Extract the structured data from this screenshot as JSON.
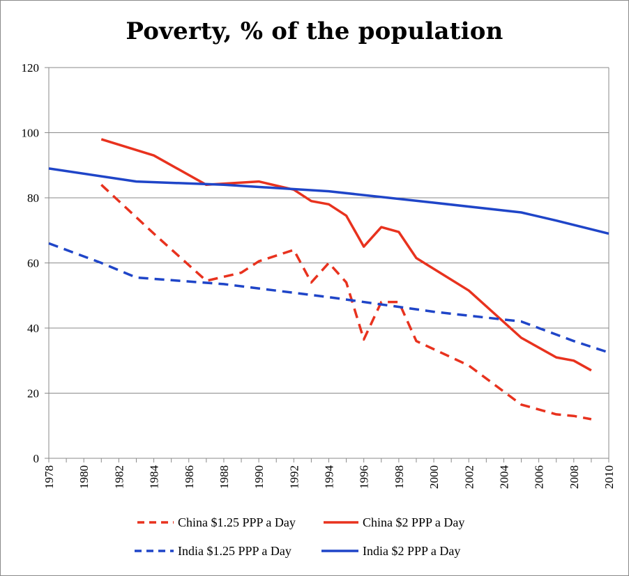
{
  "chart_data": {
    "type": "line",
    "title": "Poverty, % of the population",
    "xlabel": "",
    "ylabel": "",
    "xlim": [
      1978,
      2010
    ],
    "ylim": [
      0,
      120
    ],
    "y_ticks": [
      0,
      20,
      40,
      60,
      80,
      100,
      120
    ],
    "x_ticks": [
      1978,
      1980,
      1982,
      1984,
      1986,
      1988,
      1990,
      1992,
      1994,
      1996,
      1998,
      2000,
      2002,
      2004,
      2006,
      2008,
      2010
    ],
    "grid": "horizontal",
    "legend_placement": "bottom",
    "series": [
      {
        "name": "China $1.25 PPP a Day",
        "color": "#e8321e",
        "dash": "dashed",
        "points": [
          [
            1981,
            84
          ],
          [
            1984,
            69
          ],
          [
            1987,
            54.5
          ],
          [
            1989,
            57
          ],
          [
            1990,
            60.5
          ],
          [
            1992,
            64
          ],
          [
            1993,
            54
          ],
          [
            1994,
            60
          ],
          [
            1995,
            54
          ],
          [
            1996,
            36.5
          ],
          [
            1997,
            48
          ],
          [
            1998,
            48
          ],
          [
            1999,
            36
          ],
          [
            2002,
            28.5
          ],
          [
            2005,
            16.5
          ],
          [
            2007,
            13.5
          ],
          [
            2008,
            13
          ],
          [
            2009,
            12
          ]
        ]
      },
      {
        "name": "China $2 PPP a Day",
        "color": "#e8321e",
        "dash": "solid",
        "points": [
          [
            1981,
            98
          ],
          [
            1984,
            93
          ],
          [
            1987,
            84
          ],
          [
            1990,
            85
          ],
          [
            1992,
            82.5
          ],
          [
            1993,
            79
          ],
          [
            1994,
            78
          ],
          [
            1995,
            74.5
          ],
          [
            1996,
            65
          ],
          [
            1997,
            71
          ],
          [
            1998,
            69.5
          ],
          [
            1999,
            61.5
          ],
          [
            2002,
            51.5
          ],
          [
            2005,
            37
          ],
          [
            2007,
            31
          ],
          [
            2008,
            30
          ],
          [
            2009,
            27
          ]
        ]
      },
      {
        "name": "India $1.25 PPP a Day",
        "color": "#1f45c8",
        "dash": "dashed",
        "points": [
          [
            1978,
            66
          ],
          [
            1981,
            60
          ],
          [
            1983,
            55.5
          ],
          [
            1988,
            53.5
          ],
          [
            1994,
            49.5
          ],
          [
            2000,
            45
          ],
          [
            2005,
            42
          ],
          [
            2008,
            36
          ],
          [
            2010,
            32.5
          ]
        ]
      },
      {
        "name": "India $2 PPP a Day",
        "color": "#1f45c8",
        "dash": "solid",
        "points": [
          [
            1978,
            89
          ],
          [
            1983,
            85
          ],
          [
            1988,
            84
          ],
          [
            1994,
            82
          ],
          [
            2000,
            78.5
          ],
          [
            2005,
            75.5
          ],
          [
            2007,
            73
          ],
          [
            2010,
            69
          ]
        ]
      }
    ]
  }
}
